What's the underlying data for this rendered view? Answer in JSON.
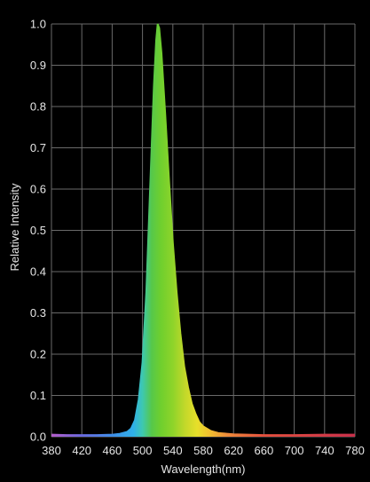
{
  "chart_data": {
    "type": "area",
    "title": "",
    "xlabel": "Wavelength(nm)",
    "ylabel": "Relative Intensity",
    "xlim": [
      380,
      780
    ],
    "ylim": [
      0,
      1.0
    ],
    "x_ticks": [
      "380",
      "420",
      "460",
      "500",
      "540",
      "580",
      "620",
      "660",
      "700",
      "740",
      "780"
    ],
    "y_ticks": [
      "0.0",
      "0.1",
      "0.2",
      "0.3",
      "0.4",
      "0.5",
      "0.6",
      "0.7",
      "0.8",
      "0.9",
      "1.0"
    ],
    "grid": true,
    "fill": "wavelength-spectrum-colors",
    "series": [
      {
        "x": [
          380,
          400,
          420,
          440,
          460,
          470,
          480,
          485,
          490,
          495,
          500,
          505,
          510,
          515,
          518,
          520,
          522,
          525,
          530,
          535,
          540,
          545,
          550,
          555,
          560,
          565,
          570,
          575,
          580,
          590,
          600,
          620,
          660,
          700,
          740,
          780
        ],
        "y": [
          0.005,
          0.004,
          0.004,
          0.004,
          0.005,
          0.007,
          0.012,
          0.02,
          0.04,
          0.09,
          0.18,
          0.35,
          0.6,
          0.85,
          0.96,
          1.0,
          0.99,
          0.93,
          0.78,
          0.62,
          0.47,
          0.35,
          0.25,
          0.17,
          0.12,
          0.08,
          0.055,
          0.035,
          0.025,
          0.014,
          0.009,
          0.006,
          0.004,
          0.004,
          0.005,
          0.005
        ]
      }
    ]
  }
}
